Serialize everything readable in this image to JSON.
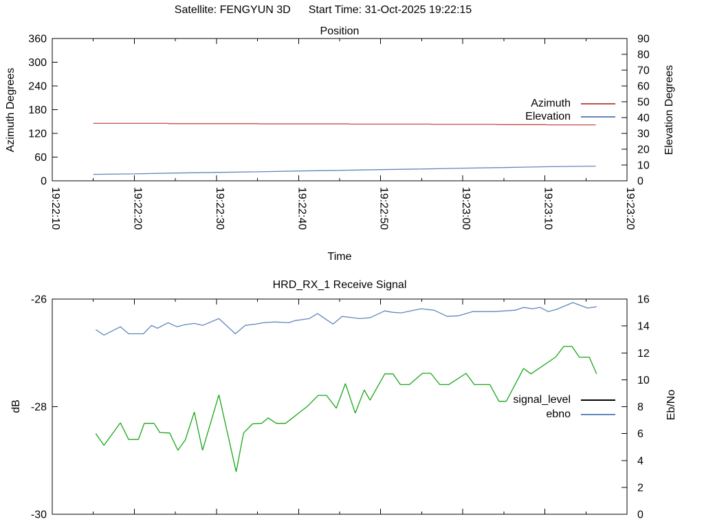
{
  "header": {
    "satellite_label": "Satellite: FENGYUN 3D",
    "start_time_label": "Start Time: 31-Oct-2025 19:22:15"
  },
  "colors": {
    "azimuth": "#bf4f4a",
    "elevation": "#6186bb",
    "signal_level_line": "#16a616",
    "signal_level_legend": "#000000",
    "ebno": "#6186bb",
    "frame": "#000000",
    "background": "#ffffff",
    "text": "#000000"
  },
  "chart_data": [
    {
      "type": "line",
      "title": "Position",
      "xlabel": "Time",
      "x_tick_labels": [
        "19:22:10",
        "19:22:20",
        "19:22:30",
        "19:22:40",
        "19:22:50",
        "19:23:00",
        "19:23:10",
        "19:23:20"
      ],
      "x_range_seconds": [
        0,
        70
      ],
      "grid": false,
      "left_axis": {
        "label": "Azimuth Degrees",
        "range": [
          0,
          360
        ],
        "ticks": [
          0,
          60,
          120,
          180,
          240,
          300,
          360
        ]
      },
      "right_axis": {
        "label": "Elevation Degrees",
        "range": [
          0,
          90
        ],
        "ticks": [
          0,
          10,
          20,
          30,
          40,
          50,
          60,
          70,
          80,
          90
        ]
      },
      "legend": [
        {
          "label": "Azimuth",
          "color_key": "azimuth"
        },
        {
          "label": "Elevation",
          "color_key": "elevation"
        }
      ],
      "series": [
        {
          "name": "Azimuth",
          "axis": "left",
          "color_key": "azimuth",
          "points": [
            [
              5.0,
              145.4
            ],
            [
              14.0,
              145.4
            ],
            [
              14.3,
              144.7
            ],
            [
              25.0,
              144.7
            ],
            [
              25.3,
              144.0
            ],
            [
              36.0,
              144.0
            ],
            [
              36.3,
              143.4
            ],
            [
              46.0,
              143.4
            ],
            [
              46.3,
              142.8
            ],
            [
              54.0,
              142.8
            ],
            [
              54.3,
              142.1
            ],
            [
              60.0,
              142.1
            ],
            [
              60.3,
              141.5
            ],
            [
              66.2,
              141.5
            ]
          ]
        },
        {
          "name": "Elevation",
          "axis": "right",
          "color_key": "elevation",
          "points": [
            [
              5.0,
              4.1
            ],
            [
              10.0,
              4.4
            ],
            [
              15.0,
              4.9
            ],
            [
              20.0,
              5.3
            ],
            [
              25.0,
              5.7
            ],
            [
              30.0,
              6.2
            ],
            [
              35.0,
              6.6
            ],
            [
              40.0,
              7.1
            ],
            [
              45.0,
              7.5
            ],
            [
              50.0,
              8.0
            ],
            [
              55.0,
              8.4
            ],
            [
              60.0,
              8.9
            ],
            [
              66.2,
              9.3
            ]
          ]
        }
      ]
    },
    {
      "type": "line",
      "title": "HRD_RX_1 Receive Signal",
      "xlabel": "",
      "x_tick_labels": [],
      "x_range_seconds": [
        0,
        70
      ],
      "grid": false,
      "left_axis": {
        "label": "dB",
        "range": [
          -30,
          -26
        ],
        "ticks": [
          -26,
          -28,
          -30
        ]
      },
      "right_axis": {
        "label": "Eb/No",
        "range": [
          0,
          16
        ],
        "ticks": [
          0,
          2,
          4,
          6,
          8,
          10,
          12,
          14,
          16
        ]
      },
      "legend": [
        {
          "label": "signal_level",
          "color_key": "signal_level_legend"
        },
        {
          "label": "ebno",
          "color_key": "ebno"
        }
      ],
      "series": [
        {
          "name": "signal_level",
          "axis": "left",
          "color_key": "signal_level_line",
          "points": [
            [
              5.3,
              -28.5
            ],
            [
              6.3,
              -28.72
            ],
            [
              8.3,
              -28.3
            ],
            [
              9.3,
              -28.61
            ],
            [
              10.5,
              -28.61
            ],
            [
              11.2,
              -28.31
            ],
            [
              12.4,
              -28.31
            ],
            [
              13.1,
              -28.48
            ],
            [
              14.3,
              -28.49
            ],
            [
              15.3,
              -28.81
            ],
            [
              16.2,
              -28.62
            ],
            [
              17.3,
              -28.1
            ],
            [
              18.3,
              -28.81
            ],
            [
              20.3,
              -27.78
            ],
            [
              22.4,
              -29.21
            ],
            [
              23.3,
              -28.49
            ],
            [
              24.4,
              -28.32
            ],
            [
              25.5,
              -28.31
            ],
            [
              26.3,
              -28.21
            ],
            [
              27.3,
              -28.31
            ],
            [
              28.4,
              -28.31
            ],
            [
              29.6,
              -28.17
            ],
            [
              31.1,
              -27.99
            ],
            [
              32.4,
              -27.79
            ],
            [
              33.4,
              -27.79
            ],
            [
              34.6,
              -28.03
            ],
            [
              35.7,
              -27.57
            ],
            [
              36.9,
              -28.12
            ],
            [
              38.0,
              -27.69
            ],
            [
              38.7,
              -27.88
            ],
            [
              40.5,
              -27.39
            ],
            [
              41.5,
              -27.39
            ],
            [
              42.4,
              -27.59
            ],
            [
              43.5,
              -27.59
            ],
            [
              45.1,
              -27.38
            ],
            [
              46.1,
              -27.38
            ],
            [
              47.2,
              -27.59
            ],
            [
              48.3,
              -27.59
            ],
            [
              50.4,
              -27.38
            ],
            [
              51.4,
              -27.59
            ],
            [
              52.5,
              -27.59
            ],
            [
              53.3,
              -27.59
            ],
            [
              54.4,
              -27.9
            ],
            [
              55.3,
              -27.9
            ],
            [
              57.4,
              -27.29
            ],
            [
              58.3,
              -27.39
            ],
            [
              61.3,
              -27.08
            ],
            [
              62.3,
              -26.88
            ],
            [
              63.3,
              -26.88
            ],
            [
              64.2,
              -27.08
            ],
            [
              65.4,
              -27.08
            ],
            [
              66.3,
              -27.39
            ]
          ]
        },
        {
          "name": "ebno",
          "axis": "right",
          "color_key": "ebno",
          "points": [
            [
              5.3,
              13.73
            ],
            [
              6.3,
              13.32
            ],
            [
              8.3,
              13.94
            ],
            [
              9.3,
              13.42
            ],
            [
              11.1,
              13.42
            ],
            [
              12.1,
              14.04
            ],
            [
              12.8,
              13.83
            ],
            [
              14.1,
              14.24
            ],
            [
              15.2,
              13.94
            ],
            [
              16.1,
              14.09
            ],
            [
              17.3,
              14.19
            ],
            [
              18.3,
              14.04
            ],
            [
              20.3,
              14.55
            ],
            [
              22.3,
              13.42
            ],
            [
              23.5,
              14.04
            ],
            [
              24.8,
              14.14
            ],
            [
              25.7,
              14.24
            ],
            [
              27.1,
              14.3
            ],
            [
              28.8,
              14.24
            ],
            [
              29.6,
              14.4
            ],
            [
              31.3,
              14.55
            ],
            [
              32.3,
              14.92
            ],
            [
              34.2,
              14.14
            ],
            [
              35.3,
              14.71
            ],
            [
              37.4,
              14.55
            ],
            [
              38.7,
              14.61
            ],
            [
              40.5,
              15.12
            ],
            [
              41.4,
              15.02
            ],
            [
              42.5,
              14.97
            ],
            [
              44.9,
              15.28
            ],
            [
              46.5,
              15.17
            ],
            [
              48.1,
              14.71
            ],
            [
              49.5,
              14.76
            ],
            [
              51.2,
              15.07
            ],
            [
              52.7,
              15.07
            ],
            [
              53.8,
              15.07
            ],
            [
              56.4,
              15.17
            ],
            [
              57.4,
              15.38
            ],
            [
              58.5,
              15.28
            ],
            [
              59.4,
              15.38
            ],
            [
              60.4,
              15.07
            ],
            [
              61.4,
              15.23
            ],
            [
              63.4,
              15.74
            ],
            [
              65.2,
              15.33
            ],
            [
              66.3,
              15.43
            ]
          ]
        }
      ]
    }
  ]
}
